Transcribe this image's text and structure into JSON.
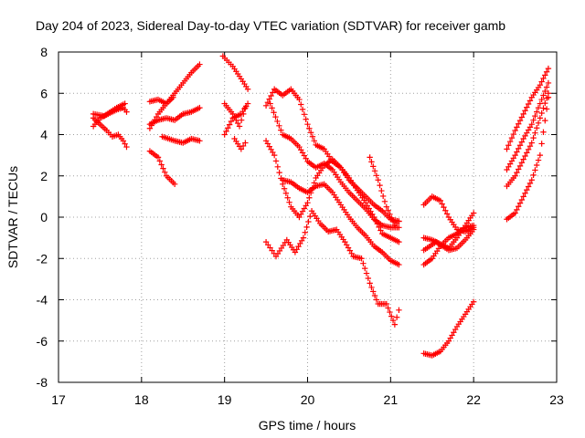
{
  "chart_data": {
    "type": "scatter",
    "title": "Day 204 of 2023, Sidereal Day-to-day VTEC variation (SDTVAR) for receiver gamb",
    "xlabel": "GPS time / hours",
    "ylabel": "SDTVAR / TECUs",
    "xlim": [
      17,
      23
    ],
    "ylim": [
      -8,
      8
    ],
    "xticks": [
      17,
      18,
      19,
      20,
      21,
      22,
      23
    ],
    "yticks": [
      -8,
      -6,
      -4,
      -2,
      0,
      2,
      4,
      6,
      8
    ],
    "grid": true,
    "marker": "+",
    "color": "#ff0000",
    "series": [
      {
        "name": "s1",
        "x": [
          17.42,
          17.5,
          17.6,
          17.7,
          17.78,
          17.82
        ],
        "y": [
          4.4,
          4.8,
          5.0,
          5.2,
          5.3,
          5.1
        ]
      },
      {
        "name": "s2",
        "x": [
          17.42,
          17.5,
          17.58,
          17.65,
          17.72,
          17.78,
          17.82
        ],
        "y": [
          4.8,
          4.5,
          4.2,
          3.9,
          4.0,
          3.7,
          3.4
        ]
      },
      {
        "name": "s3",
        "x": [
          17.42,
          17.55,
          17.7,
          17.8
        ],
        "y": [
          5.0,
          4.9,
          5.3,
          5.5
        ]
      },
      {
        "name": "s4",
        "x": [
          18.1,
          18.2,
          18.3,
          18.4,
          18.5,
          18.6,
          18.7
        ],
        "y": [
          4.3,
          5.0,
          5.5,
          6.0,
          6.5,
          7.0,
          7.4
        ]
      },
      {
        "name": "s5",
        "x": [
          18.1,
          18.2,
          18.3,
          18.38
        ],
        "y": [
          5.6,
          5.7,
          5.5,
          5.8
        ]
      },
      {
        "name": "s6",
        "x": [
          18.1,
          18.2,
          18.3,
          18.4,
          18.5,
          18.6,
          18.7
        ],
        "y": [
          4.5,
          4.7,
          4.8,
          4.7,
          5.0,
          5.1,
          5.3
        ]
      },
      {
        "name": "s7",
        "x": [
          18.25,
          18.4,
          18.5,
          18.6,
          18.7
        ],
        "y": [
          3.9,
          3.7,
          3.6,
          3.8,
          3.7
        ]
      },
      {
        "name": "s8",
        "x": [
          18.1,
          18.2,
          18.3,
          18.4
        ],
        "y": [
          3.2,
          2.9,
          2.0,
          1.6
        ]
      },
      {
        "name": "s9",
        "x": [
          18.98,
          19.1,
          19.2,
          19.28
        ],
        "y": [
          7.8,
          7.3,
          6.7,
          6.2
        ]
      },
      {
        "name": "s10",
        "x": [
          19.0,
          19.1,
          19.2,
          19.28
        ],
        "y": [
          4.0,
          4.8,
          5.0,
          5.5
        ]
      },
      {
        "name": "s11",
        "x": [
          19.0,
          19.1,
          19.18,
          19.25
        ],
        "y": [
          5.5,
          5.0,
          4.4,
          5.3
        ]
      },
      {
        "name": "s12",
        "x": [
          19.12,
          19.2,
          19.25
        ],
        "y": [
          3.8,
          3.3,
          3.6
        ]
      },
      {
        "name": "s13",
        "x": [
          19.5,
          19.6,
          19.7,
          19.8,
          19.9,
          20.0,
          20.1,
          20.2,
          20.3,
          20.4,
          20.5,
          20.6,
          20.7,
          20.8,
          20.9,
          21.0,
          21.1
        ],
        "y": [
          5.4,
          6.2,
          5.9,
          6.2,
          5.7,
          4.5,
          3.5,
          3.3,
          2.7,
          2.4,
          1.8,
          1.4,
          1.0,
          0.6,
          0.3,
          -0.1,
          -0.2
        ]
      },
      {
        "name": "s14",
        "x": [
          19.55,
          19.7,
          19.8,
          19.9,
          20.0,
          20.1,
          20.2,
          20.3,
          20.4,
          20.5,
          20.6,
          20.7,
          20.8,
          20.9,
          21.0,
          21.1
        ],
        "y": [
          5.5,
          4.0,
          3.8,
          3.4,
          2.7,
          2.4,
          2.6,
          2.3,
          1.7,
          1.2,
          0.8,
          0.4,
          -0.1,
          -0.4,
          -0.5,
          -0.5
        ]
      },
      {
        "name": "s15",
        "x": [
          19.5,
          19.6,
          19.7,
          19.8,
          19.9,
          20.0,
          20.1,
          20.2,
          20.3,
          20.4,
          20.5,
          20.6,
          20.7,
          20.8,
          20.9,
          21.0,
          21.1
        ],
        "y": [
          3.7,
          3.0,
          1.6,
          0.5,
          0.0,
          0.7,
          1.9,
          2.5,
          2.8,
          2.4,
          1.9,
          1.3,
          0.7,
          0.0,
          -0.8,
          -1.0,
          -1.2
        ]
      },
      {
        "name": "s16",
        "x": [
          19.7,
          19.8,
          19.9,
          20.0,
          20.1,
          20.2,
          20.3,
          20.4,
          20.5,
          20.6,
          20.7,
          20.8,
          20.9,
          21.0,
          21.1
        ],
        "y": [
          1.8,
          1.7,
          1.4,
          1.2,
          1.5,
          1.6,
          1.2,
          0.6,
          0.0,
          -0.5,
          -0.9,
          -1.4,
          -1.7,
          -2.1,
          -2.3
        ]
      },
      {
        "name": "s17",
        "x": [
          19.5,
          19.62,
          19.75,
          19.85,
          19.95,
          20.05,
          20.15,
          20.25,
          20.35,
          20.45,
          20.55,
          20.65,
          20.75,
          20.85,
          20.95,
          21.05,
          21.1
        ],
        "y": [
          -1.2,
          -1.9,
          -1.1,
          -1.7,
          -1.0,
          0.3,
          -0.3,
          -0.7,
          -0.6,
          -1.2,
          -1.9,
          -2.0,
          -3.2,
          -4.2,
          -4.2,
          -5.2,
          -4.5
        ]
      },
      {
        "name": "s18",
        "x": [
          20.75,
          20.85,
          20.95,
          21.05,
          21.1
        ],
        "y": [
          2.9,
          1.8,
          0.5,
          -0.4,
          -0.2
        ]
      },
      {
        "name": "s19",
        "x": [
          21.4,
          21.5,
          21.6,
          21.7,
          21.8,
          21.9,
          22.0
        ],
        "y": [
          -1.0,
          -1.1,
          -1.3,
          -1.5,
          -1.0,
          -0.4,
          0.2
        ]
      },
      {
        "name": "s20",
        "x": [
          21.4,
          21.5,
          21.6,
          21.7,
          21.8,
          21.9,
          22.0
        ],
        "y": [
          -2.3,
          -2.0,
          -1.4,
          -1.0,
          -0.8,
          -0.5,
          -0.4
        ]
      },
      {
        "name": "s21",
        "x": [
          21.4,
          21.5,
          21.6,
          21.7,
          21.8,
          21.9,
          22.0
        ],
        "y": [
          0.6,
          1.0,
          0.8,
          0.0,
          -0.6,
          -0.7,
          -0.5
        ]
      },
      {
        "name": "s22",
        "x": [
          21.4,
          21.55,
          21.7,
          21.8,
          21.9,
          22.0
        ],
        "y": [
          -1.6,
          -1.2,
          -1.6,
          -1.5,
          -1.1,
          -0.6
        ]
      },
      {
        "name": "s23",
        "x": [
          21.4,
          21.5,
          21.6,
          21.7,
          21.8,
          21.9,
          22.0
        ],
        "y": [
          -6.6,
          -6.7,
          -6.5,
          -6.0,
          -5.3,
          -4.7,
          -4.1
        ]
      },
      {
        "name": "s24",
        "x": [
          22.4,
          22.5,
          22.6,
          22.7,
          22.8,
          22.9
        ],
        "y": [
          3.3,
          4.2,
          5.0,
          5.8,
          6.4,
          7.2
        ]
      },
      {
        "name": "s25",
        "x": [
          22.4,
          22.5,
          22.6,
          22.7,
          22.8,
          22.9
        ],
        "y": [
          2.3,
          3.0,
          3.8,
          4.5,
          5.5,
          6.5
        ]
      },
      {
        "name": "s26",
        "x": [
          22.4,
          22.5,
          22.6,
          22.7,
          22.8,
          22.9
        ],
        "y": [
          1.5,
          2.0,
          2.8,
          3.6,
          4.8,
          6.0
        ]
      },
      {
        "name": "s27",
        "x": [
          22.4,
          22.5,
          22.6,
          22.7,
          22.8,
          22.9
        ],
        "y": [
          -0.1,
          0.2,
          1.0,
          1.8,
          3.0,
          5.8
        ]
      }
    ]
  }
}
